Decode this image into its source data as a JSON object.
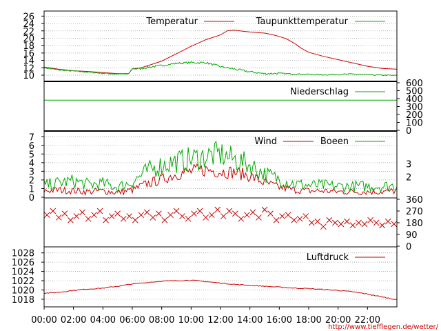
{
  "chart_data": [
    {
      "type": "line",
      "id": "temperature",
      "x_unit": "hours",
      "ylim": [
        8.5,
        27
      ],
      "yticks": [
        10,
        12,
        14,
        16,
        18,
        20,
        22,
        24,
        26
      ],
      "yticks_side": "left",
      "grid": true,
      "legend": "top",
      "series": [
        {
          "name": "Temperatur",
          "color": "#cc0000",
          "x": [
            0,
            1,
            2,
            3,
            4,
            5,
            5.75,
            6,
            6.5,
            7,
            8,
            9,
            10,
            11,
            12,
            12.5,
            13,
            13.5,
            14,
            15,
            15.5,
            16,
            16.5,
            17,
            17.5,
            18,
            19,
            20,
            21,
            22,
            23,
            24
          ],
          "values": [
            12.2,
            11.6,
            11.2,
            11.0,
            10.7,
            10.4,
            10.4,
            11.7,
            11.9,
            12.5,
            13.8,
            15.8,
            17.8,
            19.6,
            20.9,
            22.1,
            22.2,
            21.9,
            21.7,
            21.4,
            21.0,
            20.5,
            19.8,
            18.7,
            17.3,
            16.2,
            15.1,
            14.2,
            13.3,
            12.4,
            11.8,
            11.6
          ]
        },
        {
          "name": "Taupunkttemperatur",
          "color": "#00aa00",
          "x": [
            0,
            1,
            2,
            3,
            4,
            5,
            5.75,
            6,
            6.5,
            7,
            8,
            9,
            10,
            11,
            12,
            13,
            14,
            15,
            16,
            17,
            18,
            19,
            20,
            21,
            22,
            23,
            24
          ],
          "values": [
            12.0,
            11.4,
            11.1,
            10.8,
            10.5,
            10.3,
            10.3,
            11.8,
            11.7,
            12.1,
            12.6,
            13.2,
            13.4,
            13.4,
            12.3,
            11.6,
            10.9,
            10.4,
            10.5,
            10.3,
            10.2,
            10.1,
            10.2,
            10.3,
            10.1,
            10.0,
            9.9
          ]
        }
      ]
    },
    {
      "type": "line",
      "id": "precipitation",
      "x_unit": "hours",
      "ylim": [
        0,
        600
      ],
      "yticks": [
        0,
        100,
        200,
        300,
        400,
        500,
        600
      ],
      "yticks_side": "right",
      "grid": false,
      "legend": "top",
      "series": [
        {
          "name": "Niederschlag",
          "color": "#00aa00",
          "x": [
            0,
            24
          ],
          "values": [
            380,
            380
          ]
        }
      ]
    },
    {
      "type": "line",
      "id": "wind",
      "x_unit": "hours",
      "ylim": [
        0,
        7.5
      ],
      "yticks": [
        0,
        1,
        2,
        3,
        4,
        5,
        6,
        7
      ],
      "yticks_side": "left",
      "right_ticks": [
        "2",
        "3"
      ],
      "grid": true,
      "legend": "top",
      "series": [
        {
          "name": "Wind",
          "color": "#cc0000",
          "x": [
            0,
            1,
            2,
            3,
            4,
            5,
            6,
            7,
            8,
            9,
            10,
            11,
            12,
            13,
            14,
            15,
            16,
            17,
            18,
            19,
            20,
            21,
            22,
            23,
            24
          ],
          "values": [
            0.7,
            0.8,
            0.7,
            0.6,
            0.7,
            0.5,
            0.8,
            1.5,
            2.0,
            2.6,
            2.9,
            3.1,
            2.9,
            2.8,
            2.4,
            1.6,
            1.1,
            0.8,
            0.7,
            0.7,
            0.6,
            0.6,
            0.6,
            0.6,
            0.7
          ]
        },
        {
          "name": "Boeen",
          "color": "#00aa00",
          "x": [
            0,
            1,
            2,
            3,
            4,
            5,
            6,
            7,
            8,
            9,
            10,
            11,
            12,
            13,
            14,
            15,
            16,
            17,
            18,
            19,
            20,
            21,
            22,
            23,
            24
          ],
          "values": [
            1.3,
            1.6,
            1.8,
            1.4,
            1.5,
            1.1,
            1.7,
            2.9,
            3.6,
            4.0,
            4.3,
            4.6,
            4.8,
            4.2,
            3.6,
            2.6,
            2.0,
            1.5,
            1.3,
            1.3,
            1.2,
            1.2,
            1.2,
            1.2,
            1.3
          ]
        }
      ]
    },
    {
      "type": "scatter",
      "id": "wind_direction",
      "x_unit": "hours",
      "ylim": [
        0,
        360
      ],
      "yticks": [
        0,
        90,
        180,
        270,
        360
      ],
      "yticks_side": "right",
      "grid": false,
      "series": [
        {
          "name": "",
          "color": "#cc0000",
          "marker": "x",
          "x": [
            0.2,
            0.6,
            1.0,
            1.4,
            1.8,
            2.2,
            2.6,
            3.0,
            3.4,
            3.8,
            4.2,
            4.6,
            5.0,
            5.4,
            5.8,
            6.2,
            6.6,
            7.0,
            7.4,
            7.8,
            8.2,
            8.6,
            9.0,
            9.4,
            9.8,
            10.2,
            10.6,
            11.0,
            11.4,
            11.8,
            12.2,
            12.6,
            13.0,
            13.4,
            13.8,
            14.2,
            14.6,
            15.0,
            15.4,
            15.8,
            16.2,
            16.6,
            17.0,
            17.4,
            17.8,
            18.2,
            18.6,
            19.0,
            19.4,
            19.8,
            20.2,
            20.6,
            21.0,
            21.4,
            21.8,
            22.2,
            22.6,
            23.0,
            23.4,
            23.8
          ],
          "values": [
            240,
            270,
            220,
            250,
            200,
            230,
            260,
            210,
            240,
            270,
            200,
            230,
            250,
            210,
            230,
            200,
            240,
            260,
            220,
            250,
            200,
            240,
            270,
            230,
            210,
            250,
            270,
            220,
            240,
            280,
            230,
            270,
            250,
            210,
            240,
            260,
            220,
            280,
            250,
            200,
            230,
            240,
            200,
            210,
            230,
            180,
            190,
            150,
            200,
            180,
            170,
            190,
            160,
            180,
            170,
            200,
            180,
            160,
            190,
            170
          ]
        }
      ]
    },
    {
      "type": "line",
      "id": "pressure",
      "x_unit": "hours",
      "ylim": [
        1016.5,
        1029
      ],
      "yticks": [
        1018,
        1020,
        1022,
        1024,
        1026,
        1028
      ],
      "yticks_side": "left",
      "grid": true,
      "legend": "top",
      "series": [
        {
          "name": "Luftdruck",
          "color": "#cc0000",
          "x": [
            0,
            1,
            2,
            3,
            4,
            5,
            6,
            7,
            8,
            9,
            10,
            11,
            12,
            13,
            14,
            15,
            16,
            17,
            18,
            19,
            20,
            21,
            22,
            23,
            24
          ],
          "values": [
            1019.3,
            1019.5,
            1019.9,
            1020.2,
            1020.4,
            1020.8,
            1021.3,
            1021.6,
            1021.9,
            1022.0,
            1022.1,
            1021.8,
            1021.5,
            1021.2,
            1021.0,
            1020.8,
            1020.6,
            1020.4,
            1020.3,
            1020.1,
            1019.9,
            1019.6,
            1019.1,
            1018.5,
            1017.9
          ]
        }
      ]
    }
  ],
  "x_axis": {
    "range": [
      0,
      24
    ],
    "tick_labels": [
      "00:00",
      "02:00",
      "04:00",
      "06:00",
      "08:00",
      "10:00",
      "12:00",
      "14:00",
      "16:00",
      "18:00",
      "20:00",
      "22:00"
    ]
  },
  "source_url": "http://www.tiefflegen.de/wetter/",
  "colors": {
    "primary_line": "#cc0000",
    "secondary_line": "#00aa00",
    "url": "#cc0000"
  }
}
